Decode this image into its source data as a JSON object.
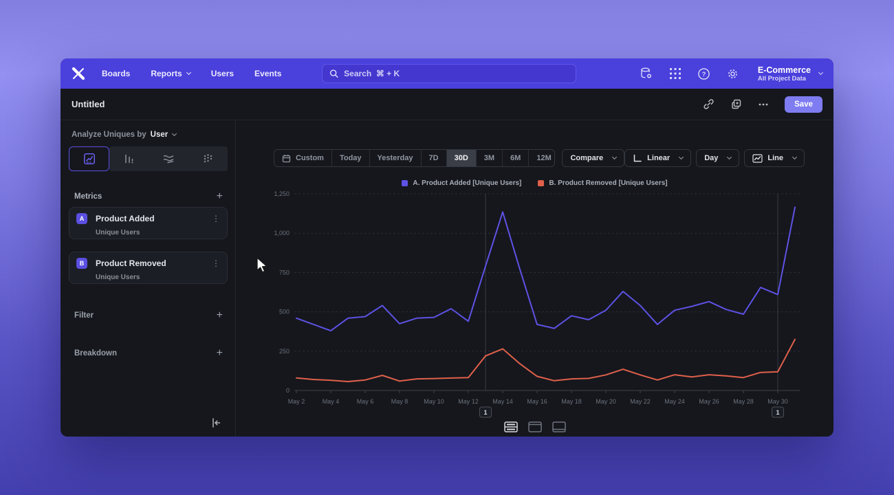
{
  "colors": {
    "nav_bg": "#4a40dc",
    "accent_purple": "#5e52e4",
    "accent_orange": "#e0604a",
    "save_bg": "#7e7cf0",
    "selected_pill_bg": "#3a3e47"
  },
  "nav": {
    "logo": "mixpanel-x-logo",
    "items": [
      {
        "label": "Boards",
        "caret": false
      },
      {
        "label": "Reports",
        "caret": true
      },
      {
        "label": "Users",
        "caret": false
      },
      {
        "label": "Events",
        "caret": false
      }
    ],
    "search_placeholder": "Search  ⌘ + K",
    "right_icons": [
      "data-settings-icon",
      "app-grid-icon",
      "help-icon",
      "gear-icon"
    ],
    "project_name": "E-Commerce",
    "project_subtitle": "All Project Data"
  },
  "titlebar": {
    "title": "Untitled",
    "icons": [
      "link-icon",
      "duplicate-icon",
      "more-icon"
    ],
    "save_label": "Save"
  },
  "sidebar": {
    "analyze_prefix": "Analyze Uniques by",
    "analyze_value": "User",
    "tabs": [
      "insights",
      "funnels",
      "retention",
      "flows"
    ],
    "active_tab": "insights",
    "metrics_header": "Metrics",
    "metrics": [
      {
        "badge": "A",
        "name": "Product Added",
        "subtitle": "Unique Users"
      },
      {
        "badge": "B",
        "name": "Product Removed",
        "subtitle": "Unique Users"
      }
    ],
    "filter_label": "Filter",
    "breakdown_label": "Breakdown"
  },
  "controls": {
    "date_ranges": [
      "Custom",
      "Today",
      "Yesterday",
      "7D",
      "30D",
      "3M",
      "6M",
      "12M"
    ],
    "selected_range": "30D",
    "compare_label": "Compare",
    "scale_label": "Linear",
    "interval_label": "Day",
    "chart_type_label": "Line"
  },
  "footer_views": [
    "layout-split-rows",
    "layout-top-band",
    "layout-bottom-band"
  ],
  "footer_selected": 0,
  "chart_data": {
    "type": "line",
    "title": "",
    "xlabel": "",
    "ylabel": "",
    "ylim": [
      0,
      1250
    ],
    "ytick_step": 250,
    "x_label_every": 2,
    "grid": "horizontal-dashed",
    "legend_position": "top-center",
    "x": [
      "May 2",
      "May 3",
      "May 4",
      "May 5",
      "May 6",
      "May 7",
      "May 8",
      "May 9",
      "May 10",
      "May 11",
      "May 12",
      "May 13",
      "May 14",
      "May 15",
      "May 16",
      "May 17",
      "May 18",
      "May 19",
      "May 20",
      "May 21",
      "May 22",
      "May 23",
      "May 24",
      "May 25",
      "May 26",
      "May 27",
      "May 28",
      "May 29",
      "May 30",
      "May 31"
    ],
    "series": [
      {
        "name": "A. Product Added [Unique Users]",
        "color": "#5e52e4",
        "values": [
          460,
          420,
          380,
          460,
          470,
          540,
          425,
          460,
          465,
          520,
          440,
          790,
          1135,
          770,
          420,
          395,
          475,
          450,
          510,
          630,
          540,
          420,
          510,
          535,
          565,
          515,
          485,
          655,
          610,
          1165
        ]
      },
      {
        "name": "B. Product Removed [Unique Users]",
        "color": "#e0604a",
        "values": [
          80,
          70,
          65,
          57,
          67,
          96,
          60,
          74,
          76,
          79,
          82,
          220,
          265,
          170,
          90,
          62,
          74,
          77,
          99,
          135,
          99,
          67,
          100,
          86,
          100,
          93,
          82,
          115,
          119,
          325
        ]
      }
    ],
    "annotations": [
      {
        "x": "May 13",
        "x_index": 11,
        "label": "1"
      },
      {
        "x": "May 30",
        "x_index": 28,
        "label": "1"
      }
    ]
  }
}
